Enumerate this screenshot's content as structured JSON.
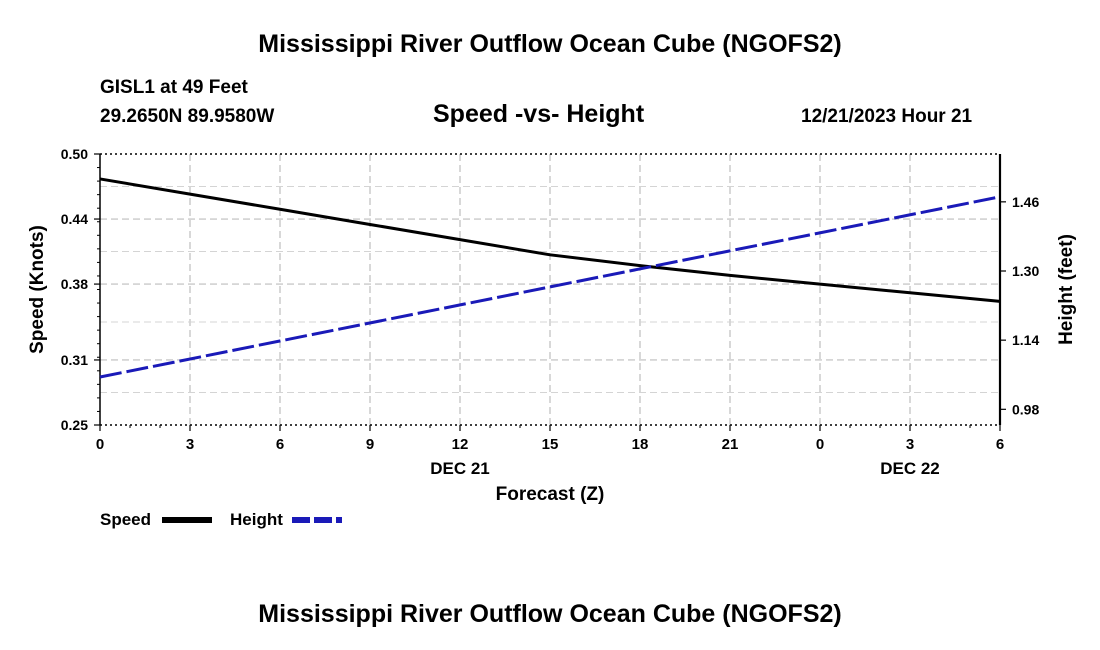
{
  "page": {
    "title_top": "Mississippi River Outflow Ocean Cube (NGOFS2)",
    "title_bottom": "Mississippi River Outflow Ocean Cube (NGOFS2)",
    "station": "GISL1 at 49 Feet",
    "coords": "29.2650N  89.9580W",
    "date": "12/21/2023 Hour 21"
  },
  "legend": {
    "speed_label": "Speed",
    "height_label": "Height"
  },
  "colors": {
    "speed": "#000000",
    "height": "#1a1ab8",
    "grid": "#bdbdbd"
  },
  "chart_data": {
    "type": "line",
    "title": "Speed -vs- Height",
    "xlabel": "Forecast (Z)",
    "ylabel_left": "Speed (Knots)",
    "ylabel_right": "Height (feet)",
    "x": [
      0,
      3,
      6,
      9,
      12,
      15,
      18,
      21,
      24,
      27,
      30
    ],
    "x_tick_labels": [
      "0",
      "3",
      "6",
      "9",
      "12",
      "15",
      "18",
      "21",
      "0",
      "3",
      "6"
    ],
    "x_day_labels": [
      {
        "x": 12,
        "label": "DEC 21"
      },
      {
        "x": 27,
        "label": "DEC 22"
      }
    ],
    "xlim": [
      0,
      30
    ],
    "y_left_ticks": [
      "0.50",
      "0.44",
      "0.38",
      "0.31",
      "0.25"
    ],
    "y_left_tick_values": [
      0.5,
      0.44,
      0.38,
      0.31,
      0.25
    ],
    "ylim_left": [
      0.25,
      0.5
    ],
    "y_right_ticks": [
      "1.46",
      "1.30",
      "1.14",
      "0.98"
    ],
    "y_right_tick_values": [
      1.46,
      1.3,
      1.14,
      0.98
    ],
    "ylim_right": [
      0.9437,
      1.5707
    ],
    "grid": true,
    "legend_position": "bottom-left",
    "series": [
      {
        "name": "Speed",
        "axis": "left",
        "style": "solid",
        "x": [
          0,
          3,
          6,
          9,
          12,
          15,
          18,
          21,
          24,
          27,
          30
        ],
        "values": [
          0.477,
          0.463,
          0.449,
          0.435,
          0.421,
          0.407,
          0.397,
          0.388,
          0.38,
          0.372,
          0.364
        ]
      },
      {
        "name": "Height",
        "axis": "right",
        "style": "dashed",
        "x": [
          0,
          30
        ],
        "values": [
          1.0547,
          1.4717
        ]
      }
    ]
  }
}
